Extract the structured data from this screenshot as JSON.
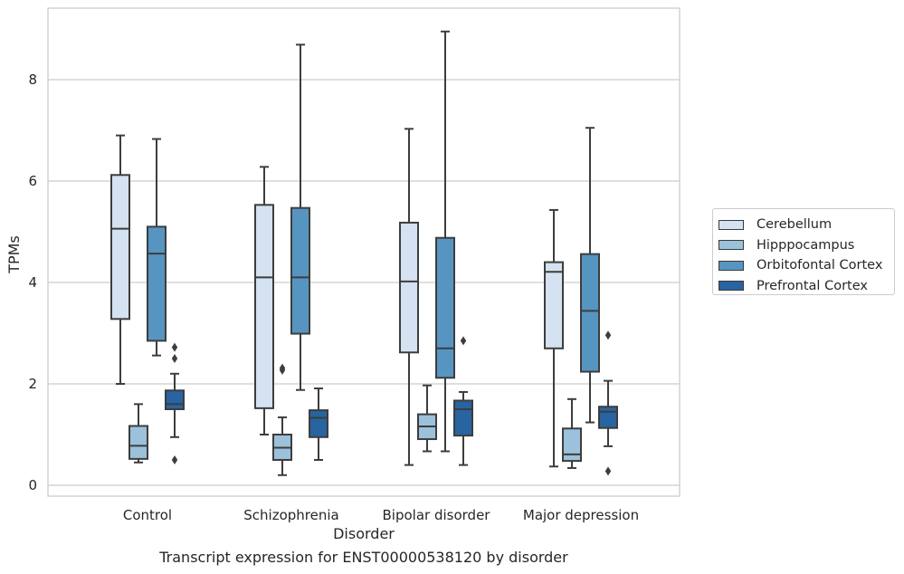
{
  "chart_data": {
    "type": "box",
    "caption": "Transcript expression for ENST00000538120 by disorder",
    "xlabel": "Disorder",
    "ylabel": "TPMs",
    "ylim": [
      -0.2,
      9.4
    ],
    "yticks": [
      0,
      2,
      4,
      6,
      8
    ],
    "grid": true,
    "legend_position": "right",
    "categories": [
      "Control",
      "Schizophrenia",
      "Bipolar disorder",
      "Major depression"
    ],
    "series": [
      {
        "name": "Cerebellum",
        "color": "#d4e2f1",
        "boxes": [
          {
            "whislo": 2.0,
            "q1": 3.28,
            "med": 5.06,
            "q3": 6.12,
            "whishi": 6.9,
            "fliers": []
          },
          {
            "whislo": 1.0,
            "q1": 1.52,
            "med": 4.1,
            "q3": 5.53,
            "whishi": 6.28,
            "fliers": []
          },
          {
            "whislo": 0.4,
            "q1": 2.62,
            "med": 4.02,
            "q3": 5.18,
            "whishi": 7.03,
            "fliers": []
          },
          {
            "whislo": 0.37,
            "q1": 2.7,
            "med": 4.21,
            "q3": 4.4,
            "whishi": 5.43,
            "fliers": []
          }
        ]
      },
      {
        "name": "Hipppocampus",
        "color": "#9cc1db",
        "boxes": [
          {
            "whislo": 0.45,
            "q1": 0.52,
            "med": 0.78,
            "q3": 1.17,
            "whishi": 1.6,
            "fliers": []
          },
          {
            "whislo": 0.2,
            "q1": 0.5,
            "med": 0.74,
            "q3": 1.0,
            "whishi": 1.34,
            "fliers": [
              2.27,
              2.31
            ]
          },
          {
            "whislo": 0.67,
            "q1": 0.91,
            "med": 1.16,
            "q3": 1.4,
            "whishi": 1.97,
            "fliers": []
          },
          {
            "whislo": 0.34,
            "q1": 0.48,
            "med": 0.61,
            "q3": 1.12,
            "whishi": 1.7,
            "fliers": []
          }
        ]
      },
      {
        "name": "Orbitofontal Cortex",
        "color": "#5795c1",
        "boxes": [
          {
            "whislo": 2.56,
            "q1": 2.85,
            "med": 4.57,
            "q3": 5.1,
            "whishi": 6.83,
            "fliers": []
          },
          {
            "whislo": 1.88,
            "q1": 2.99,
            "med": 4.1,
            "q3": 5.47,
            "whishi": 8.69,
            "fliers": []
          },
          {
            "whislo": 0.67,
            "q1": 2.12,
            "med": 2.7,
            "q3": 4.88,
            "whishi": 8.95,
            "fliers": []
          },
          {
            "whislo": 1.24,
            "q1": 2.24,
            "med": 3.44,
            "q3": 4.56,
            "whishi": 7.05,
            "fliers": []
          }
        ]
      },
      {
        "name": "Prefrontal Cortex",
        "color": "#2764a1",
        "boxes": [
          {
            "whislo": 0.95,
            "q1": 1.5,
            "med": 1.6,
            "q3": 1.87,
            "whishi": 2.2,
            "fliers": [
              2.5,
              2.72,
              0.5
            ]
          },
          {
            "whislo": 0.5,
            "q1": 0.95,
            "med": 1.33,
            "q3": 1.48,
            "whishi": 1.91,
            "fliers": []
          },
          {
            "whislo": 0.4,
            "q1": 0.98,
            "med": 1.5,
            "q3": 1.67,
            "whishi": 1.84,
            "fliers": [
              2.85
            ]
          },
          {
            "whislo": 0.77,
            "q1": 1.13,
            "med": 1.45,
            "q3": 1.55,
            "whishi": 2.06,
            "fliers": [
              2.96,
              0.28
            ]
          }
        ]
      }
    ]
  }
}
